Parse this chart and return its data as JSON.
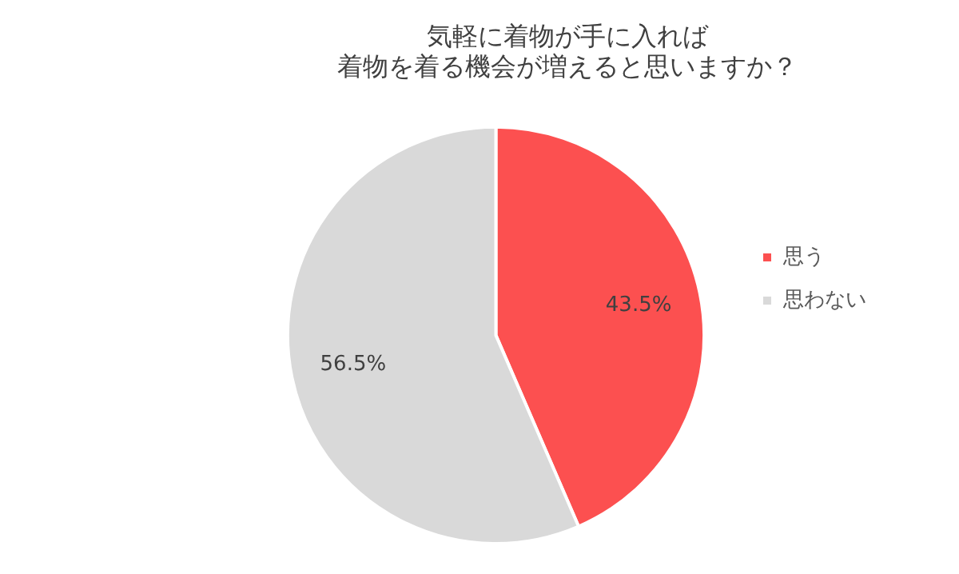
{
  "chart_data": {
    "type": "pie",
    "title": [
      "気軽に着物が手に入れば",
      "着物を着る機会が増えると思いますか？"
    ],
    "categories": [
      "思う",
      "思わない"
    ],
    "values": [
      43.5,
      56.5
    ],
    "colors": [
      "#fc5050",
      "#d9d9d9"
    ],
    "value_labels": [
      "43.5%",
      "56.5%"
    ],
    "legend": "right"
  }
}
